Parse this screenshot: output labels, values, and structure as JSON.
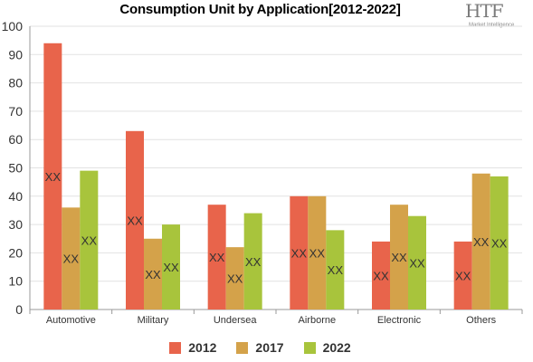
{
  "chart_data": {
    "type": "bar",
    "title": "Consumption Unit by  Application[2012-2022]",
    "categories": [
      "Automotive",
      "Military",
      "Undersea",
      "Airborne",
      "Electronic",
      "Others"
    ],
    "series": [
      {
        "name": "2012",
        "color": "#e8644b",
        "values": [
          94,
          63,
          37,
          40,
          24,
          24
        ],
        "labels": [
          "XX",
          "XX",
          "XX",
          "XX",
          "XX",
          "XX"
        ]
      },
      {
        "name": "2017",
        "color": "#d4a24a",
        "values": [
          36,
          25,
          22,
          40,
          37,
          48
        ],
        "labels": [
          "XX",
          "XX",
          "XX",
          "XX",
          "XX",
          "XX"
        ]
      },
      {
        "name": "2022",
        "color": "#a8c43c",
        "values": [
          49,
          30,
          34,
          28,
          33,
          47
        ],
        "labels": [
          "XX",
          "XX",
          "XX",
          "XX",
          "XX",
          "XX"
        ]
      }
    ],
    "ylim": [
      0,
      100
    ],
    "yticks": [
      0,
      10,
      20,
      30,
      40,
      50,
      60,
      70,
      80,
      90,
      100
    ],
    "grid": true,
    "legend": "bottom"
  },
  "logo": {
    "mark": "HTF",
    "sub": "Market Intelligence"
  }
}
